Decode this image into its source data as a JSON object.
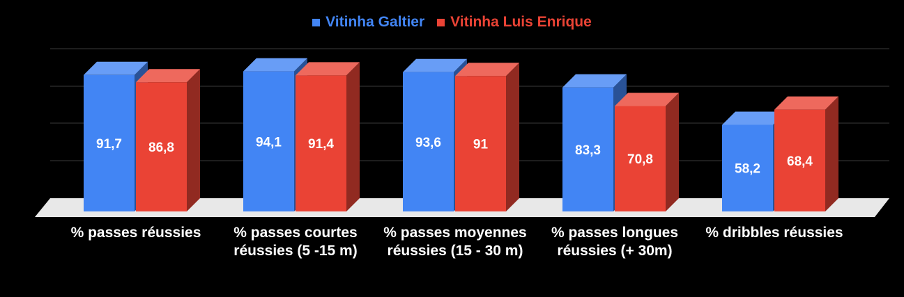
{
  "chart_data": {
    "type": "bar",
    "categories": [
      "% passes réussies",
      "% passes courtes réussies (5 -15 m)",
      "% passes moyennes réussies (15 - 30 m)",
      "% passes longues réussies (+ 30m)",
      "% dribbles réussies"
    ],
    "series": [
      {
        "name": "Vitinha Galtier",
        "values": [
          91.7,
          94.1,
          93.6,
          83.3,
          58.2
        ],
        "labels": [
          "91,7",
          "94,1",
          "93,6",
          "83,3",
          "58,2"
        ],
        "color": "#4285F4"
      },
      {
        "name": "Vitinha Luis Enrique",
        "values": [
          86.8,
          91.4,
          91,
          70.8,
          68.4
        ],
        "labels": [
          "86,8",
          "91,4",
          "91",
          "70,8",
          "68,4"
        ],
        "color": "#EA4335"
      }
    ],
    "legend_position": "top",
    "grid": true,
    "three_d": true,
    "background": "#000000"
  }
}
